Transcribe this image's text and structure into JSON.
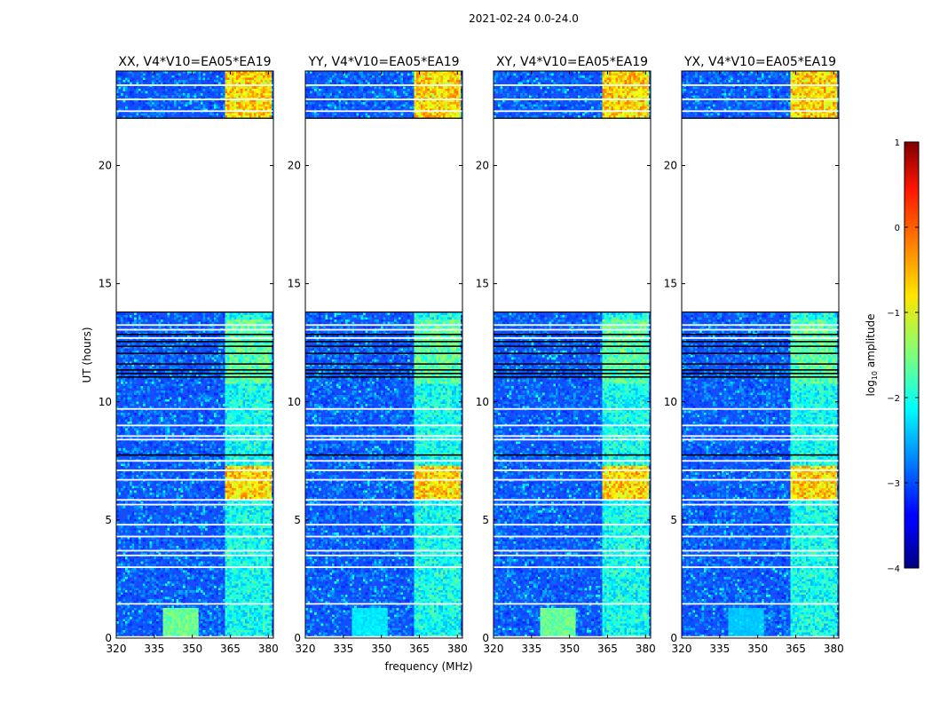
{
  "suptitle": "2021-02-24 0.0-24.0",
  "chart_data": {
    "type": "heatmap",
    "xlabel": "frequency (MHz)",
    "ylabel": "UT (hours)",
    "xlim": [
      320,
      382
    ],
    "ylim": [
      0,
      24
    ],
    "xticks": [
      320,
      335,
      350,
      365,
      380
    ],
    "yticks": [
      0,
      5,
      10,
      15,
      20
    ],
    "panels": [
      {
        "title": "XX, V4*V10=EA05*EA19",
        "low_freq_strength": 1.0
      },
      {
        "title": "YY, V4*V10=EA05*EA19",
        "low_freq_strength": 0.45
      },
      {
        "title": "XY, V4*V10=EA05*EA19",
        "low_freq_strength": 1.0
      },
      {
        "title": "YX, V4*V10=EA05*EA19",
        "low_freq_strength": 0.3
      }
    ],
    "data_gap_hours": [
      13.8,
      22.0
    ],
    "colorbar": {
      "label_prefix": "log",
      "label_subscript": "10",
      "label_suffix": " amplitude",
      "min": -4,
      "max": 1,
      "ticks": [
        -4,
        -3,
        -2,
        -1,
        0,
        1
      ],
      "colormap": "jet"
    }
  }
}
